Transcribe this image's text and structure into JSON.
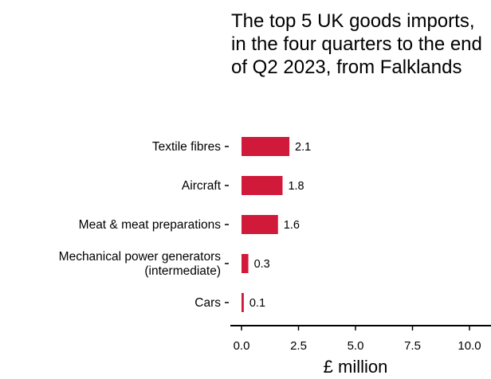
{
  "chart_data": {
    "type": "bar",
    "orientation": "horizontal",
    "title": "The top 5 UK goods imports, in the four quarters to the end of Q2 2023, from Falklands",
    "categories": [
      [
        "Textile fibres"
      ],
      [
        "Aircraft"
      ],
      [
        "Meat & meat preparations"
      ],
      [
        "Mechanical power generators",
        "(intermediate)"
      ],
      [
        "Cars"
      ]
    ],
    "values": [
      2.1,
      1.8,
      1.6,
      0.3,
      0.1
    ],
    "value_labels": [
      "2.1",
      "1.8",
      "1.6",
      "0.3",
      "0.1"
    ],
    "xlabel": "£ million",
    "ylabel": "",
    "xlim": [
      0,
      10
    ],
    "xticks": [
      0,
      2.5,
      5,
      7.5,
      10
    ],
    "xtick_labels": [
      "0.0",
      "2.5",
      "5.0",
      "7.5",
      "10.0"
    ],
    "bar_color": "#d11a3a",
    "grid": false,
    "legend": "none"
  }
}
